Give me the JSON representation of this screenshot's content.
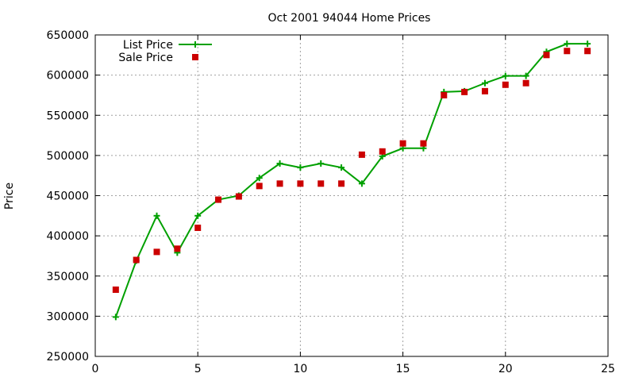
{
  "chart_data": {
    "type": "line",
    "title": "Oct 2001 94044 Home Prices",
    "xlabel": "",
    "ylabel": "Price",
    "xlim": [
      0,
      25
    ],
    "ylim": [
      250000,
      650000
    ],
    "xticks": [
      0,
      5,
      10,
      15,
      20,
      25
    ],
    "xtick_labels": [
      "0",
      "5",
      "10",
      "15",
      "20",
      "25"
    ],
    "yticks": [
      250000,
      300000,
      350000,
      400000,
      450000,
      500000,
      550000,
      600000,
      650000
    ],
    "ytick_labels": [
      "250000",
      "300000",
      "350000",
      "400000",
      "450000",
      "500000",
      "550000",
      "600000",
      "650000"
    ],
    "grid": true,
    "legend_position": "top-left",
    "series": [
      {
        "name": "List Price",
        "style": "lines+points",
        "marker": "plus",
        "color": "#00a000",
        "x": [
          1,
          2,
          3,
          4,
          5,
          6,
          7,
          8,
          9,
          10,
          11,
          12,
          13,
          14,
          15,
          16,
          17,
          18,
          19,
          20,
          21,
          22,
          23,
          24
        ],
        "y": [
          299000,
          369000,
          425000,
          379000,
          425000,
          445000,
          450000,
          472000,
          490000,
          485000,
          490000,
          485000,
          465000,
          499000,
          509000,
          509000,
          579000,
          580000,
          590000,
          599000,
          599000,
          629000,
          639000,
          639000
        ]
      },
      {
        "name": "Sale Price",
        "style": "points",
        "marker": "square",
        "color": "#cc0000",
        "x": [
          1,
          2,
          3,
          4,
          5,
          6,
          7,
          8,
          9,
          10,
          11,
          12,
          13,
          14,
          15,
          16,
          17,
          18,
          19,
          20,
          21,
          22,
          23,
          24
        ],
        "y": [
          333000,
          370000,
          380000,
          384000,
          410000,
          445000,
          449000,
          462000,
          465000,
          465000,
          465000,
          465000,
          501000,
          505000,
          515000,
          515000,
          575000,
          579000,
          580000,
          588000,
          590000,
          625000,
          630000,
          630000
        ]
      }
    ]
  }
}
